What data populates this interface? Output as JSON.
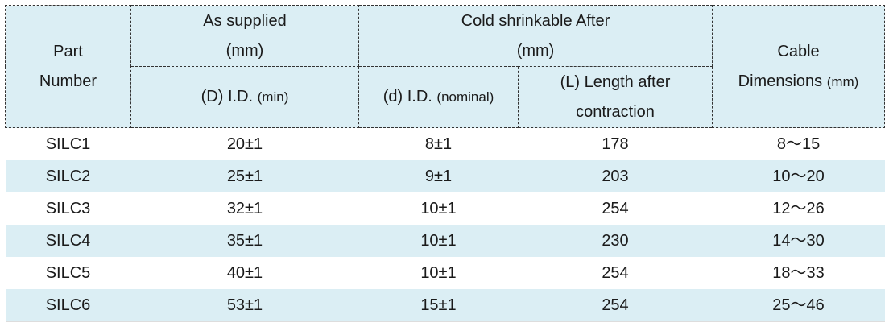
{
  "header": {
    "part_number": [
      "Part",
      "Number"
    ],
    "as_supplied": [
      "As supplied",
      "(mm)"
    ],
    "cold_shrinkable": [
      "Cold shrinkable After",
      "(mm)"
    ],
    "cable_dimensions": {
      "line1": "Cable",
      "line2": "Dimensions",
      "unit": "(mm)"
    },
    "id_min": {
      "label": "(D) I.D.",
      "note": "(min)"
    },
    "id_nominal": {
      "label": "(d) I.D.",
      "note": "(nominal)"
    },
    "length_after": [
      "(L) Length after",
      "contraction"
    ]
  },
  "rows": [
    {
      "part": "SILC1",
      "d_min": "20±1",
      "d_nom": "8±1",
      "length": "178",
      "cable": "8～15"
    },
    {
      "part": "SILC2",
      "d_min": "25±1",
      "d_nom": "9±1",
      "length": "203",
      "cable": "10～20"
    },
    {
      "part": "SILC3",
      "d_min": "32±1",
      "d_nom": "10±1",
      "length": "254",
      "cable": "12～26"
    },
    {
      "part": "SILC4",
      "d_min": "35±1",
      "d_nom": "10±1",
      "length": "230",
      "cable": "14～30"
    },
    {
      "part": "SILC5",
      "d_min": "40±1",
      "d_nom": "10±1",
      "length": "254",
      "cable": "18～33"
    },
    {
      "part": "SILC6",
      "d_min": "53±1",
      "d_nom": "15±1",
      "length": "254",
      "cable": "25～46"
    }
  ],
  "colors": {
    "header_bg": "#dbeef4",
    "stripe_bg": "#dbeef4",
    "text": "#1a1a1a"
  }
}
